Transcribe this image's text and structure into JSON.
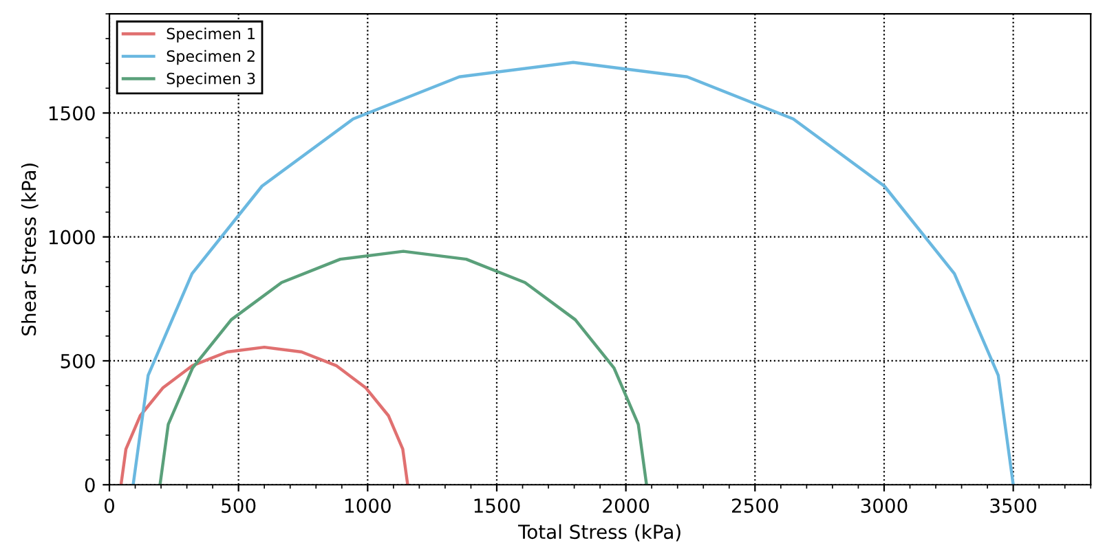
{
  "chart_data": {
    "type": "line",
    "xlabel": "Total Stress (kPa)",
    "ylabel": "Shear Stress (kPa)",
    "xlim": [
      0,
      3800
    ],
    "xticks": [
      0,
      500,
      1000,
      1500,
      2000,
      2500,
      3000,
      3500
    ],
    "ylim": [
      0,
      1900
    ],
    "yticks": [
      0,
      500,
      1000,
      1500
    ],
    "grid": true,
    "legend": "top left",
    "marker": "none",
    "line_style": "solid",
    "series": [
      {
        "name": "Specimen 1",
        "color": "#e07070",
        "x": [
          1155,
          1136,
          1081,
          992,
          878,
          744,
          600,
          456,
          322,
          208,
          119,
          64,
          45
        ],
        "values": [
          0,
          144,
          278,
          392,
          481,
          536,
          555,
          536,
          481,
          392,
          278,
          144,
          0
        ]
      },
      {
        "name": "Specimen 2",
        "color": "#6ab8e0",
        "x": [
          3500,
          3442,
          3272,
          3001,
          2648,
          2237,
          1796,
          1355,
          944,
          591,
          320,
          150,
          92
        ],
        "values": [
          0,
          441,
          852,
          1205,
          1476,
          1646,
          1704,
          1646,
          1476,
          1205,
          852,
          441,
          0
        ]
      },
      {
        "name": "Specimen 3",
        "color": "#5aa07a",
        "x": [
          2080,
          2048,
          1954,
          1804,
          1609,
          1382,
          1138,
          894,
          667,
          472,
          322,
          228,
          196
        ],
        "values": [
          0,
          244,
          471,
          666,
          816,
          910,
          942,
          910,
          816,
          666,
          471,
          244,
          0
        ]
      }
    ]
  }
}
